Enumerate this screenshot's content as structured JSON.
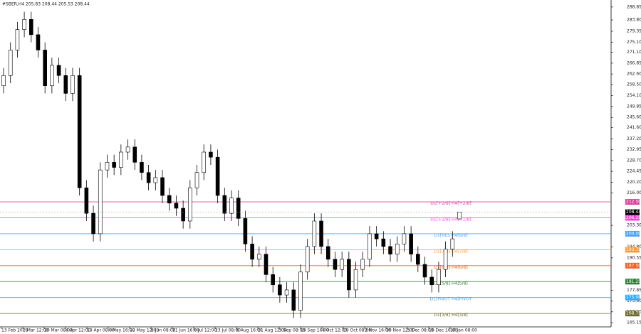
{
  "chart_data": {
    "type": "candlestick",
    "title": "#SBER,H4 205.83 208.44 205.53 208.44",
    "categories": [
      "13 Feb 2018",
      "2 Mar 12:00",
      "20 Mar 08:00",
      "4 Apr 12:00",
      "19 Apr 08:00",
      "4 May 16:00",
      "22 May 12:00",
      "8 Jun 08:00",
      "21 Jun 16:00",
      "6 Jul 12:00",
      "23 Jul 08:00",
      "6 Aug 16:00",
      "21 Aug 12:00",
      "5 Sep 08:00",
      "19 Sep 16:00",
      "4 Oct 12:00",
      "19 Oct 08:00",
      "2 Nov 16:00",
      "20 Nov 12:00",
      "5 Dec 08:00",
      "19 Dec 16:00",
      "10 Jan 08:00"
    ],
    "open": [
      258,
      262,
      272,
      280,
      284,
      278,
      272,
      258,
      266,
      262,
      255,
      262,
      218,
      208,
      200,
      225,
      228,
      226,
      232,
      234,
      228,
      224,
      220,
      222,
      215,
      212,
      210,
      205,
      218,
      224,
      232,
      230,
      215,
      208,
      214,
      206,
      196,
      190,
      192,
      184,
      180,
      176,
      178,
      170,
      185,
      195,
      205,
      195,
      190,
      186,
      190,
      178,
      186,
      190,
      200,
      198,
      195,
      192,
      196,
      200,
      192,
      188,
      183,
      180,
      186,
      194,
      205.83
    ],
    "high": [
      265,
      275,
      283,
      287,
      287,
      281,
      275,
      269,
      269,
      265,
      265,
      265,
      221,
      211,
      228,
      231,
      231,
      235,
      237,
      237,
      231,
      227,
      225,
      225,
      218,
      215,
      213,
      221,
      227,
      235,
      235,
      233,
      218,
      217,
      217,
      209,
      199,
      195,
      195,
      187,
      183,
      181,
      181,
      188,
      198,
      208,
      208,
      198,
      193,
      193,
      193,
      189,
      193,
      203,
      203,
      201,
      198,
      199,
      203,
      203,
      195,
      191,
      186,
      189,
      197,
      201,
      208.44
    ],
    "low": [
      255,
      259,
      269,
      277,
      275,
      269,
      255,
      255,
      259,
      252,
      252,
      215,
      205,
      197,
      197,
      222,
      223,
      223,
      229,
      225,
      221,
      217,
      217,
      212,
      209,
      207,
      202,
      202,
      215,
      221,
      227,
      212,
      205,
      205,
      203,
      193,
      187,
      187,
      181,
      177,
      173,
      173,
      167,
      167,
      182,
      192,
      192,
      187,
      183,
      183,
      175,
      175,
      183,
      187,
      195,
      192,
      189,
      189,
      193,
      189,
      185,
      180,
      177,
      177,
      183,
      191,
      205.53
    ],
    "close": [
      262,
      272,
      280,
      284,
      278,
      272,
      258,
      266,
      262,
      255,
      262,
      218,
      208,
      200,
      225,
      228,
      226,
      232,
      234,
      228,
      224,
      220,
      222,
      215,
      212,
      210,
      205,
      218,
      224,
      232,
      230,
      215,
      208,
      214,
      206,
      196,
      190,
      192,
      184,
      180,
      176,
      178,
      170,
      185,
      195,
      205,
      195,
      190,
      186,
      190,
      178,
      186,
      190,
      200,
      198,
      195,
      192,
      196,
      200,
      192,
      188,
      183,
      180,
      186,
      194,
      198,
      208.44
    ],
    "ylim": [
      163.5,
      291.6
    ],
    "yticks": [
      {
        "value": 288.85,
        "label": "288.85"
      },
      {
        "value": 283.8,
        "label": "283.80"
      },
      {
        "value": 279.35,
        "label": "279.35"
      },
      {
        "value": 275.1,
        "label": "275.10"
      },
      {
        "value": 271.1,
        "label": "271.10"
      },
      {
        "value": 266.85,
        "label": "266.85"
      },
      {
        "value": 262.6,
        "label": "262.60"
      },
      {
        "value": 258.5,
        "label": "258.50"
      },
      {
        "value": 254.1,
        "label": "254.10"
      },
      {
        "value": 249.85,
        "label": "249.85"
      },
      {
        "value": 245.6,
        "label": "245.60"
      },
      {
        "value": 241.6,
        "label": "241.60"
      },
      {
        "value": 237.2,
        "label": "237.20"
      },
      {
        "value": 232.95,
        "label": "232.95"
      },
      {
        "value": 228.7,
        "label": "228.70"
      },
      {
        "value": 224.45,
        "label": "224.45"
      },
      {
        "value": 220.2,
        "label": "220.20"
      },
      {
        "value": 216.0,
        "label": "216.00"
      },
      {
        "value": 203.3,
        "label": "203.30"
      },
      {
        "value": 194.8,
        "label": "194.80"
      },
      {
        "value": 190.55,
        "label": "190.55"
      },
      {
        "value": 177.85,
        "label": "177.85"
      },
      {
        "value": 173.6,
        "label": "173.60"
      },
      {
        "value": 169.4,
        "label": "169.40"
      },
      {
        "value": 165.15,
        "label": "165.15"
      }
    ],
    "levels": [
      {
        "name": "D1[+2/8] H4[+2/8]",
        "value": 212.5,
        "value_label": "212.50",
        "color": "#e0409e"
      },
      {
        "name": "D1[+1/8] H4[+1/8]",
        "value": 206.25,
        "value_label": "206.25",
        "color": "#ff40e0"
      },
      {
        "name": "D1[RES H4[8/8]",
        "value": 200.0,
        "value_label": "200.00",
        "color": "#4aa3ff"
      },
      {
        "name": "D1[7/8] H4[7/8]",
        "value": 193.75,
        "value_label": "193.75",
        "color": "#ff9933"
      },
      {
        "name": "D1[6/8] H4[6/8]",
        "value": 187.5,
        "value_label": "187.50",
        "color": "#ff5a1f"
      },
      {
        "name": "D1[5/8] H4[5/8]",
        "value": 181.25,
        "value_label": "181.25",
        "color": "#2e7d32"
      },
      {
        "name": "D1[PIVOT H4[PIVOT",
        "value": 175.0,
        "value_label": "175.00",
        "color": "#33aaff"
      },
      {
        "name": "D1[3/8] H4[3/8]",
        "value": 168.75,
        "value_label": "168.75",
        "color": "#6b6b2e"
      }
    ],
    "last_price": 208.44
  }
}
